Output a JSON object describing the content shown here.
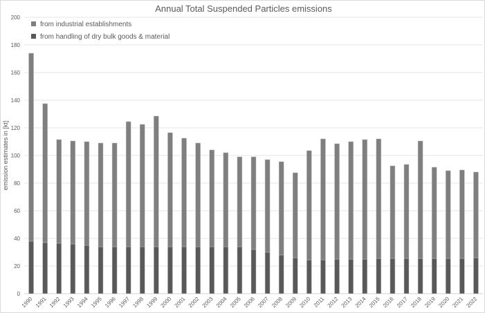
{
  "chart_data": {
    "type": "bar",
    "stacked": true,
    "title": "Annual Total Suspended Particles emissions",
    "xlabel": "",
    "ylabel": "emission estimates in [kt]",
    "ylim": [
      0,
      200
    ],
    "yticks": [
      0,
      20,
      40,
      60,
      80,
      100,
      120,
      140,
      160,
      180,
      200
    ],
    "grid": true,
    "legend_position": "top-left",
    "categories": [
      "1990",
      "1991",
      "1992",
      "1993",
      "1994",
      "1995",
      "1996",
      "1997",
      "1998",
      "1999",
      "2000",
      "2001",
      "2002",
      "2003",
      "2004",
      "2005",
      "2006",
      "2007",
      "2008",
      "2009",
      "2010",
      "2011",
      "2012",
      "2013",
      "2014",
      "2015",
      "2016",
      "2017",
      "2018",
      "2019",
      "2020",
      "2021",
      "2022"
    ],
    "series": [
      {
        "name": "from handling of dry bulk goods & material",
        "color": "#595959",
        "values": [
          38,
          37,
          36.5,
          36,
          35,
          34,
          34,
          34,
          34,
          34,
          34,
          34,
          34,
          34,
          34,
          34,
          32,
          30,
          28,
          26,
          24.5,
          24.5,
          25,
          25,
          25,
          25.5,
          25.5,
          25.5,
          25.5,
          25.5,
          25.5,
          25.5,
          26
        ]
      },
      {
        "name": "from industrial establishments",
        "color": "#7f7f7f",
        "values": [
          136,
          100.5,
          75,
          74.5,
          75,
          75,
          75,
          90.5,
          88.5,
          94.5,
          82.5,
          78.5,
          75,
          70,
          68,
          65,
          67,
          67,
          67.5,
          61.5,
          79,
          87.5,
          83.5,
          85,
          86.5,
          86.5,
          67,
          68,
          85,
          66,
          63.5,
          64,
          62
        ]
      }
    ]
  }
}
